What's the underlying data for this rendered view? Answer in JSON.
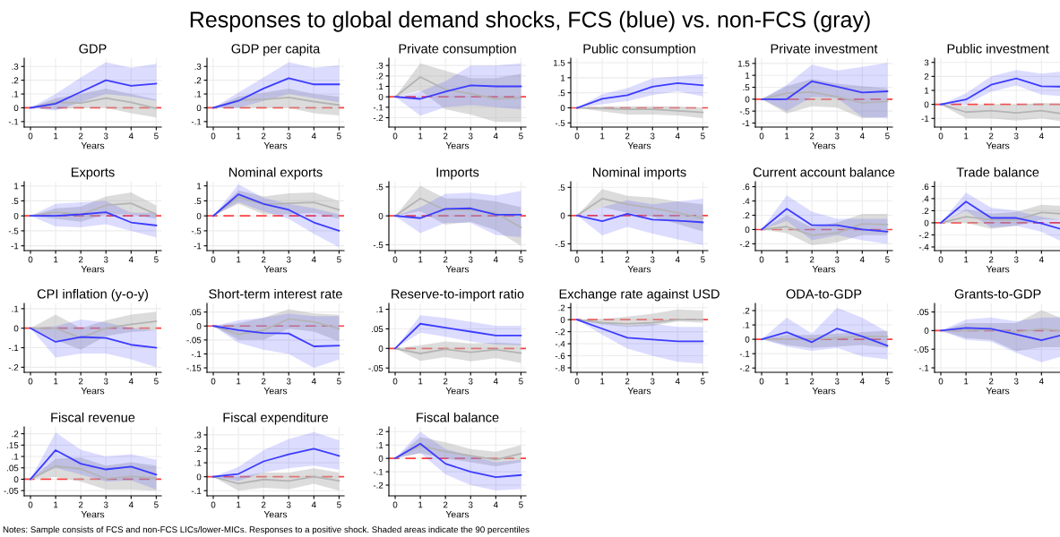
{
  "chart_data": [
    {
      "type": "other",
      "title": "Responses to global demand shocks, FCS (blue) vs. non-FCS (gray)",
      "annotations": [
        "Notes: Sample consists of FCS and non-FCS LICs/lower-MICs. Responses to a positive shock. Shaded areas indicate the 90 percentiles"
      ]
    },
    {
      "type": "line",
      "title": "GDP",
      "xlabel": "Years",
      "x": [
        0,
        1,
        2,
        3,
        4,
        5
      ],
      "xlim": [
        -0.25,
        5.2
      ],
      "xticks": [
        0,
        1,
        2,
        3,
        4,
        5
      ],
      "ylim": [
        -0.14,
        0.36
      ],
      "yticks": [
        {
          "value": -0.1,
          "label": "-.1"
        },
        0,
        {
          "value": 0.1,
          "label": ".1"
        },
        {
          "value": 0.2,
          "label": ".2"
        },
        {
          "value": 0.3,
          "label": ".3"
        }
      ],
      "grid": true,
      "ref_lines": [
        {
          "axis": "y",
          "value": 0,
          "color": "#ff4040",
          "line_style": "dashed"
        }
      ],
      "series": [
        {
          "color": "#b4b4b4",
          "values": [
            0,
            0.04,
            0.035,
            0.07,
            0.04,
            -0.005
          ],
          "lower": [
            0,
            -0.01,
            0,
            0,
            -0.04,
            -0.07
          ],
          "upper": [
            0,
            0.07,
            0.1,
            0.14,
            0.1,
            0.06
          ]
        },
        {
          "color": "#3c3cff",
          "values": [
            0,
            0.03,
            0.115,
            0.2,
            0.16,
            0.175
          ],
          "lower": [
            0,
            -0.02,
            0.04,
            0.1,
            0.08,
            0.05
          ],
          "upper": [
            0,
            0.1,
            0.22,
            0.33,
            0.29,
            0.32
          ]
        }
      ]
    },
    {
      "type": "line",
      "title": "GDP per capita",
      "xlabel": "Years",
      "x": [
        0,
        1,
        2,
        3,
        4,
        5
      ],
      "xlim": [
        -0.25,
        5.2
      ],
      "xticks": [
        0,
        1,
        2,
        3,
        4,
        5
      ],
      "ylim": [
        -0.14,
        0.36
      ],
      "yticks": [
        {
          "value": -0.1,
          "label": "-.1"
        },
        0,
        {
          "value": 0.1,
          "label": ".1"
        },
        {
          "value": 0.2,
          "label": ".2"
        },
        {
          "value": 0.3,
          "label": ".3"
        }
      ],
      "grid": true,
      "ref_lines": [
        {
          "axis": "y",
          "value": 0,
          "color": "#ff4040",
          "line_style": "dashed"
        }
      ],
      "series": [
        {
          "color": "#b4b4b4",
          "values": [
            0,
            0.055,
            0.06,
            0.075,
            0.045,
            0.02
          ],
          "lower": [
            0,
            0,
            0,
            0,
            -0.04,
            -0.055
          ],
          "upper": [
            0,
            0.08,
            0.11,
            0.14,
            0.1,
            0.08
          ]
        },
        {
          "color": "#3c3cff",
          "values": [
            0,
            0.05,
            0.14,
            0.215,
            0.17,
            0.17
          ],
          "lower": [
            0,
            0,
            0.05,
            0.1,
            0.07,
            0.04
          ],
          "upper": [
            0,
            0.11,
            0.22,
            0.33,
            0.29,
            0.31
          ]
        }
      ]
    },
    {
      "type": "line",
      "title": "Private consumption",
      "xlabel": "Years",
      "x": [
        0,
        1,
        2,
        3,
        4,
        5
      ],
      "xlim": [
        -0.25,
        5.2
      ],
      "xticks": [
        0,
        1,
        2,
        3,
        4,
        5
      ],
      "ylim": [
        -0.29,
        0.37
      ],
      "yticks": [
        {
          "value": -0.2,
          "label": "-.2"
        },
        {
          "value": -0.1,
          "label": "-.1"
        },
        0,
        {
          "value": 0.1,
          "label": ".1"
        },
        {
          "value": 0.2,
          "label": ".2"
        },
        {
          "value": 0.3,
          "label": ".3"
        }
      ],
      "grid": true,
      "ref_lines": [
        {
          "axis": "y",
          "value": 0,
          "color": "#ff4040",
          "line_style": "dashed"
        }
      ],
      "series": [
        {
          "color": "#b4b4b4",
          "values": [
            0,
            0.19,
            0.07,
            0.03,
            -0.02,
            -0.01
          ],
          "lower": [
            0,
            0.06,
            -0.12,
            -0.17,
            -0.24,
            -0.24
          ],
          "upper": [
            0,
            0.32,
            0.25,
            0.18,
            0.18,
            0.22
          ]
        },
        {
          "color": "#3c3cff",
          "values": [
            0,
            -0.02,
            0.05,
            0.11,
            0.1,
            0.1
          ],
          "lower": [
            0,
            -0.18,
            -0.1,
            -0.08,
            -0.1,
            -0.12
          ],
          "upper": [
            0,
            0.05,
            0.15,
            0.3,
            0.3,
            0.32
          ]
        }
      ]
    },
    {
      "type": "line",
      "title": "Public consumption",
      "xlabel": "Years",
      "x": [
        0,
        1,
        2,
        3,
        4,
        5
      ],
      "xlim": [
        -0.25,
        5.2
      ],
      "xticks": [
        0,
        1,
        2,
        3,
        4,
        5
      ],
      "ylim": [
        -0.64,
        1.65
      ],
      "yticks": [
        {
          "value": -0.5,
          "label": "-.5"
        },
        0,
        {
          "value": 0.5,
          "label": ".5"
        },
        1,
        1.5
      ],
      "grid": true,
      "ref_lines": [
        {
          "axis": "y",
          "value": 0,
          "color": "#ff4040",
          "line_style": "dashed"
        }
      ],
      "series": [
        {
          "color": "#b4b4b4",
          "values": [
            0,
            -0.02,
            -0.05,
            -0.05,
            -0.1,
            -0.15
          ],
          "lower": [
            0,
            -0.12,
            -0.22,
            -0.22,
            -0.25,
            -0.35
          ],
          "upper": [
            0,
            0.05,
            0.05,
            0.05,
            0.05,
            0
          ]
        },
        {
          "color": "#3c3cff",
          "values": [
            0,
            0.3,
            0.42,
            0.7,
            0.82,
            0.75
          ],
          "lower": [
            0,
            0.12,
            0.22,
            0.42,
            0.55,
            0.38
          ],
          "upper": [
            0,
            0.45,
            0.65,
            0.98,
            1.05,
            1.12
          ]
        }
      ]
    },
    {
      "type": "line",
      "title": "Private investment",
      "xlabel": "Years",
      "x": [
        0,
        1,
        2,
        3,
        4,
        5
      ],
      "xlim": [
        -0.25,
        5.2
      ],
      "xticks": [
        0,
        1,
        2,
        3,
        4,
        5
      ],
      "ylim": [
        -1.17,
        1.72
      ],
      "yticks": [
        -1,
        {
          "value": -0.5,
          "label": "-.5"
        },
        0,
        {
          "value": 0.5,
          "label": ".5"
        },
        1,
        1.5
      ],
      "grid": true,
      "ref_lines": [
        {
          "axis": "y",
          "value": 0,
          "color": "#ff4040",
          "line_style": "dashed"
        }
      ],
      "series": [
        {
          "color": "#b4b4b4",
          "values": [
            0,
            0.25,
            0.3,
            0.1,
            -0.15,
            -0.1
          ],
          "lower": [
            0,
            -0.6,
            -0.3,
            -0.35,
            -0.8,
            -0.75
          ],
          "upper": [
            0,
            0.55,
            0.85,
            0.65,
            0.55,
            0.45
          ]
        },
        {
          "color": "#3c3cff",
          "values": [
            0,
            0,
            0.75,
            0.52,
            0.28,
            0.33
          ],
          "lower": [
            0,
            -0.5,
            0.1,
            0.05,
            -0.75,
            -0.8
          ],
          "upper": [
            0,
            0.6,
            1.45,
            1.2,
            1.35,
            1.52
          ]
        }
      ]
    },
    {
      "type": "line",
      "title": "Public investment",
      "xlabel": "Years",
      "x": [
        0,
        1,
        2,
        3,
        4,
        4.75
      ],
      "xlim": [
        -0.25,
        4.78
      ],
      "xticks": [
        0,
        1,
        2,
        3,
        4
      ],
      "ylim": [
        -1.62,
        3.3
      ],
      "yticks": [
        -1,
        0,
        1,
        2,
        3
      ],
      "grid": true,
      "ref_lines": [
        {
          "axis": "y",
          "value": 0,
          "color": "#ff4040",
          "line_style": "dashed"
        }
      ],
      "series": [
        {
          "color": "#b4b4b4",
          "values": [
            0,
            -0.55,
            -0.45,
            -0.6,
            -0.45,
            -0.65
          ],
          "lower": [
            0,
            -1,
            -1,
            -1.15,
            -1,
            -1.2
          ],
          "upper": [
            0,
            -0.1,
            0,
            0,
            0.1,
            0.05
          ]
        },
        {
          "color": "#3c3cff",
          "values": [
            0,
            0.35,
            1.4,
            1.85,
            1.3,
            1.27
          ],
          "lower": [
            0,
            0,
            0.9,
            1.35,
            0.7,
            0.6
          ],
          "upper": [
            0,
            0.8,
            2,
            2.45,
            2.2,
            2.35
          ]
        }
      ]
    },
    {
      "type": "line",
      "title": "Exports",
      "xlabel": "Years",
      "x": [
        0,
        1,
        2,
        3,
        4,
        5
      ],
      "xlim": [
        -0.25,
        5.2
      ],
      "xticks": [
        0,
        1,
        2,
        3,
        4,
        5
      ],
      "ylim": [
        -1.16,
        1.14
      ],
      "yticks": [
        -1,
        {
          "value": -0.5,
          "label": "-.5"
        },
        0,
        {
          "value": 0.5,
          "label": ".5"
        },
        1
      ],
      "grid": true,
      "ref_lines": [
        {
          "axis": "y",
          "value": 0,
          "color": "#ff4040",
          "line_style": "dashed"
        }
      ],
      "series": [
        {
          "color": "#b4b4b4",
          "values": [
            0,
            0.12,
            0.05,
            0.35,
            0.42,
            0.05
          ],
          "lower": [
            0,
            -0.1,
            -0.2,
            0.05,
            0.05,
            -0.1
          ],
          "upper": [
            0,
            0.25,
            0.3,
            0.65,
            0.78,
            0.35
          ]
        },
        {
          "color": "#3c3cff",
          "values": [
            0,
            0,
            0.05,
            0.12,
            -0.22,
            -0.32
          ],
          "lower": [
            0,
            -0.35,
            -0.38,
            -0.28,
            -0.5,
            -0.72
          ],
          "upper": [
            0,
            0.4,
            0.45,
            0.5,
            0.1,
            0.1
          ]
        }
      ]
    },
    {
      "type": "line",
      "title": "Nominal exports",
      "xlabel": "Years",
      "x": [
        0,
        1,
        2,
        3,
        4,
        5
      ],
      "xlim": [
        -0.25,
        5.2
      ],
      "xticks": [
        0,
        1,
        2,
        3,
        4,
        5
      ],
      "ylim": [
        -1.16,
        1.14
      ],
      "yticks": [
        -1,
        {
          "value": -0.5,
          "label": "-.5"
        },
        0,
        {
          "value": 0.5,
          "label": ".5"
        },
        1
      ],
      "grid": true,
      "ref_lines": [
        {
          "axis": "y",
          "value": 0,
          "color": "#ff4040",
          "line_style": "dashed"
        }
      ],
      "series": [
        {
          "color": "#b4b4b4",
          "values": [
            0,
            0.62,
            0.38,
            0.42,
            0.45,
            0.2
          ],
          "lower": [
            0,
            0.4,
            0.05,
            0.05,
            0.1,
            -0.1
          ],
          "upper": [
            0,
            0.85,
            0.65,
            0.75,
            0.78,
            0.5
          ]
        },
        {
          "color": "#3c3cff",
          "values": [
            0,
            0.72,
            0.4,
            0.2,
            -0.22,
            -0.5
          ],
          "lower": [
            0,
            0.45,
            0.15,
            -0.1,
            -0.6,
            -1.05
          ],
          "upper": [
            0,
            1.05,
            0.6,
            0.4,
            0.25,
            0.05
          ]
        }
      ]
    },
    {
      "type": "line",
      "title": "Imports",
      "xlabel": "Years",
      "x": [
        0,
        1,
        2,
        3,
        4,
        5
      ],
      "xlim": [
        -0.25,
        5.2
      ],
      "xticks": [
        0,
        1,
        2,
        3,
        4,
        5
      ],
      "ylim": [
        -0.6,
        0.59
      ],
      "yticks": [
        {
          "value": -0.5,
          "label": "-.5"
        },
        0,
        {
          "value": 0.5,
          "label": ".5"
        }
      ],
      "grid": true,
      "ref_lines": [
        {
          "axis": "y",
          "value": 0,
          "color": "#ff4040",
          "line_style": "dashed"
        }
      ],
      "series": [
        {
          "color": "#b4b4b4",
          "values": [
            0,
            0.3,
            0.1,
            0.1,
            0.05,
            -0.2
          ],
          "lower": [
            0,
            0.08,
            -0.15,
            -0.1,
            -0.25,
            -0.52
          ],
          "upper": [
            0,
            0.52,
            0.3,
            0.3,
            0.25,
            0.15
          ]
        },
        {
          "color": "#3c3cff",
          "values": [
            0,
            -0.04,
            0.12,
            0.13,
            0.02,
            0.02
          ],
          "lower": [
            0,
            -0.3,
            -0.12,
            -0.12,
            -0.33,
            -0.37
          ],
          "upper": [
            0,
            0.15,
            0.38,
            0.4,
            0.35,
            0.43
          ]
        }
      ]
    },
    {
      "type": "line",
      "title": "Nominal imports",
      "xlabel": "Years",
      "x": [
        0,
        1,
        2,
        3,
        4,
        5
      ],
      "xlim": [
        -0.25,
        5.2
      ],
      "xticks": [
        0,
        1,
        2,
        3,
        4,
        5
      ],
      "ylim": [
        -0.62,
        0.6
      ],
      "yticks": [
        {
          "value": -0.5,
          "label": "-.5"
        },
        0,
        {
          "value": 0.5,
          "label": ".5"
        }
      ],
      "grid": true,
      "ref_lines": [
        {
          "axis": "y",
          "value": 0,
          "color": "#ff4040",
          "line_style": "dashed"
        }
      ],
      "series": [
        {
          "color": "#b4b4b4",
          "values": [
            0,
            0.3,
            0.2,
            0.13,
            0.05,
            -0.05
          ],
          "lower": [
            0,
            0.15,
            0.05,
            -0.02,
            -0.15,
            -0.28
          ],
          "upper": [
            0,
            0.47,
            0.35,
            0.32,
            0.25,
            0.2
          ]
        },
        {
          "color": "#3c3cff",
          "values": [
            0,
            -0.1,
            0.03,
            -0.07,
            -0.09,
            -0.12
          ],
          "lower": [
            0,
            -0.35,
            -0.2,
            -0.32,
            -0.42,
            -0.52
          ],
          "upper": [
            0,
            0.15,
            0.27,
            0.2,
            0.25,
            0.3
          ]
        }
      ]
    },
    {
      "type": "line",
      "title": "Current account balance",
      "xlabel": "Years",
      "x": [
        0,
        1,
        2,
        3,
        4,
        5
      ],
      "xlim": [
        -0.25,
        5.2
      ],
      "xticks": [
        0,
        1,
        2,
        3,
        4,
        5
      ],
      "ylim": [
        -0.295,
        0.67
      ],
      "yticks": [
        {
          "value": -0.2,
          "label": "-.2"
        },
        0,
        {
          "value": 0.2,
          "label": ".2"
        },
        {
          "value": 0.4,
          "label": ".4"
        },
        {
          "value": 0.6,
          "label": ".6"
        }
      ],
      "grid": true,
      "ref_lines": [
        {
          "axis": "y",
          "value": 0,
          "color": "#ff4040",
          "line_style": "dashed"
        }
      ],
      "series": [
        {
          "color": "#b4b4b4",
          "values": [
            0,
            0.04,
            -0.08,
            -0.05,
            0.08,
            0.07
          ],
          "lower": [
            0,
            -0.05,
            -0.22,
            -0.18,
            -0.08,
            -0.08
          ],
          "upper": [
            0,
            0.2,
            0.03,
            0.1,
            0.22,
            0.22
          ]
        },
        {
          "color": "#3c3cff",
          "values": [
            0,
            0.29,
            0.06,
            0.06,
            0,
            -0.03
          ],
          "lower": [
            0,
            0.12,
            -0.15,
            -0.08,
            -0.15,
            -0.2
          ],
          "upper": [
            0,
            0.48,
            0.25,
            0.15,
            0.15,
            0.15
          ]
        }
      ]
    },
    {
      "type": "line",
      "title": "Trade balance",
      "xlabel": "Years",
      "x": [
        0,
        1,
        2,
        3,
        4,
        4.75
      ],
      "xlim": [
        -0.25,
        4.78
      ],
      "xticks": [
        0,
        1,
        2,
        3,
        4
      ],
      "ylim": [
        -0.46,
        0.68
      ],
      "yticks": [
        {
          "value": -0.4,
          "label": "-.4"
        },
        {
          "value": -0.2,
          "label": "-.2"
        },
        0,
        {
          "value": 0.2,
          "label": ".2"
        },
        {
          "value": 0.4,
          "label": ".4"
        },
        {
          "value": 0.6,
          "label": ".6"
        }
      ],
      "grid": true,
      "ref_lines": [
        {
          "axis": "y",
          "value": 0,
          "color": "#ff4040",
          "line_style": "dashed"
        }
      ],
      "series": [
        {
          "color": "#b4b4b4",
          "values": [
            0,
            0.1,
            0.05,
            0.05,
            0.17,
            0.15
          ],
          "lower": [
            0,
            0,
            -0.1,
            -0.05,
            0.05,
            0.05
          ],
          "upper": [
            0,
            0.22,
            0.15,
            0.18,
            0.3,
            0.28
          ]
        },
        {
          "color": "#3c3cff",
          "values": [
            0,
            0.35,
            0.08,
            0.08,
            -0.01,
            -0.1
          ],
          "lower": [
            0,
            0.2,
            -0.08,
            -0.05,
            -0.15,
            -0.3
          ],
          "upper": [
            0,
            0.5,
            0.25,
            0.2,
            0.1,
            0.05
          ]
        }
      ]
    },
    {
      "type": "line",
      "title": "CPI inflation (y-o-y)",
      "xlabel": "Years",
      "x": [
        0,
        1,
        2,
        3,
        4,
        5
      ],
      "xlim": [
        -0.25,
        5.2
      ],
      "xticks": [
        0,
        1,
        2,
        3,
        4,
        5
      ],
      "ylim": [
        -0.226,
        0.127
      ],
      "yticks": [
        {
          "value": -0.2,
          "label": "-.2"
        },
        {
          "value": -0.1,
          "label": "-.1"
        },
        0,
        {
          "value": 0.1,
          "label": ".1"
        }
      ],
      "grid": true,
      "ref_lines": [
        {
          "axis": "y",
          "value": 0,
          "color": "#ff4040",
          "line_style": "dashed"
        }
      ],
      "series": [
        {
          "color": "#b4b4b4",
          "values": [
            0,
            0,
            -0.05,
            0,
            0.02,
            0.035
          ],
          "lower": [
            0,
            -0.06,
            -0.11,
            -0.04,
            -0.02,
            -0.01
          ],
          "upper": [
            0,
            0.07,
            0,
            0.04,
            0.07,
            0.085
          ]
        },
        {
          "color": "#3c3cff",
          "values": [
            0,
            -0.07,
            -0.045,
            -0.05,
            -0.085,
            -0.1
          ],
          "lower": [
            0,
            -0.15,
            -0.13,
            -0.13,
            -0.16,
            -0.2
          ],
          "upper": [
            0,
            0.01,
            0.045,
            0.03,
            0,
            -0.01
          ]
        }
      ]
    },
    {
      "type": "line",
      "title": "Short-term interest rate",
      "xlabel": "Years",
      "x": [
        0,
        1,
        2,
        3,
        4,
        5
      ],
      "xlim": [
        -0.25,
        5.2
      ],
      "xticks": [
        0,
        1,
        2,
        3,
        4,
        5
      ],
      "ylim": [
        -0.166,
        0.081
      ],
      "yticks": [
        {
          "value": -0.15,
          "label": "-.15"
        },
        {
          "value": -0.1,
          "label": "-.1"
        },
        {
          "value": -0.05,
          "label": "-.05"
        },
        0,
        {
          "value": 0.05,
          "label": ".05"
        }
      ],
      "grid": true,
      "ref_lines": [
        {
          "axis": "y",
          "value": 0,
          "color": "#ff4040",
          "line_style": "dashed"
        }
      ],
      "series": [
        {
          "color": "#b4b4b4",
          "values": [
            0,
            -0.03,
            -0.015,
            0.025,
            0.015,
            -0.01
          ],
          "lower": [
            0,
            -0.05,
            -0.05,
            -0.01,
            -0.02,
            -0.055
          ],
          "upper": [
            0,
            0.01,
            0.03,
            0.06,
            0.045,
            0.04
          ]
        },
        {
          "color": "#3c3cff",
          "values": [
            0,
            -0.015,
            -0.025,
            -0.027,
            -0.073,
            -0.07
          ],
          "lower": [
            0,
            -0.06,
            -0.085,
            -0.1,
            -0.15,
            -0.12
          ],
          "upper": [
            0,
            0.02,
            0.03,
            0.045,
            0.035,
            0.035
          ]
        }
      ]
    },
    {
      "type": "line",
      "title": "Reserve-to-import ratio",
      "xlabel": "Years",
      "x": [
        0,
        1,
        2,
        3,
        4,
        5
      ],
      "xlim": [
        -0.25,
        5.2
      ],
      "xticks": [
        0,
        1,
        2,
        3,
        4,
        5
      ],
      "ylim": [
        -0.061,
        0.115
      ],
      "yticks": [
        {
          "value": -0.05,
          "label": "-.05"
        },
        0,
        {
          "value": 0.05,
          "label": ".05"
        },
        {
          "value": 0.1,
          "label": ".1"
        }
      ],
      "grid": true,
      "ref_lines": [
        {
          "axis": "y",
          "value": 0,
          "color": "#ff4040",
          "line_style": "dashed"
        }
      ],
      "series": [
        {
          "color": "#b4b4b4",
          "values": [
            0,
            -0.013,
            -0.002,
            -0.01,
            -0.003,
            -0.012
          ],
          "lower": [
            0,
            -0.032,
            -0.022,
            -0.033,
            -0.025,
            -0.037
          ],
          "upper": [
            0,
            0.008,
            0.018,
            0.013,
            0.015,
            0.012
          ]
        },
        {
          "color": "#3c3cff",
          "values": [
            0,
            0.063,
            0.053,
            0.043,
            0.033,
            0.033
          ],
          "lower": [
            0,
            0.04,
            0.03,
            0.018,
            0.01,
            0.008
          ],
          "upper": [
            0,
            0.085,
            0.078,
            0.068,
            0.058,
            0.058
          ]
        }
      ]
    },
    {
      "type": "line",
      "title": "Exchange rate against USD",
      "xlabel": "Years",
      "x": [
        0,
        1,
        2,
        3,
        4,
        5
      ],
      "xlim": [
        -0.25,
        5.2
      ],
      "xticks": [
        0,
        1,
        2,
        3,
        4,
        5
      ],
      "ylim": [
        -0.875,
        0.27
      ],
      "yticks": [
        {
          "value": -0.8,
          "label": "-.8"
        },
        {
          "value": -0.6,
          "label": "-.6"
        },
        {
          "value": -0.4,
          "label": "-.4"
        },
        {
          "value": -0.2,
          "label": "-.2"
        },
        0,
        {
          "value": 0.2,
          "label": ".2"
        }
      ],
      "grid": true,
      "ref_lines": [
        {
          "axis": "y",
          "value": 0,
          "color": "#ff4040",
          "line_style": "dashed"
        }
      ],
      "series": [
        {
          "color": "#b4b4b4",
          "values": [
            0,
            -0.05,
            -0.07,
            -0.05,
            0,
            0
          ],
          "lower": [
            0,
            -0.08,
            -0.12,
            -0.1,
            -0.03,
            -0.05
          ],
          "upper": [
            0,
            0.01,
            0.05,
            0.1,
            0.17,
            0.15
          ]
        },
        {
          "color": "#3c3cff",
          "values": [
            0,
            -0.15,
            -0.3,
            -0.33,
            -0.36,
            -0.36
          ],
          "lower": [
            0,
            -0.25,
            -0.48,
            -0.6,
            -0.7,
            -0.73
          ],
          "upper": [
            0,
            -0.05,
            -0.1,
            -0.07,
            -0.12,
            -0.12
          ]
        }
      ]
    },
    {
      "type": "line",
      "title": "ODA-to-GDP",
      "xlabel": "Years",
      "x": [
        0,
        1,
        2,
        3,
        4,
        5
      ],
      "xlim": [
        -0.25,
        5.2
      ],
      "xticks": [
        0,
        1,
        2,
        3,
        4,
        5
      ],
      "ylim": [
        -0.23,
        0.25
      ],
      "yticks": [
        {
          "value": -0.2,
          "label": "-.2"
        },
        {
          "value": -0.1,
          "label": "-.1"
        },
        0,
        {
          "value": 0.1,
          "label": ".1"
        },
        {
          "value": 0.2,
          "label": ".2"
        }
      ],
      "grid": true,
      "ref_lines": [
        {
          "axis": "y",
          "value": 0,
          "color": "#ff4040",
          "line_style": "dashed"
        }
      ],
      "series": [
        {
          "color": "#b4b4b4",
          "values": [
            0,
            0,
            0,
            0.01,
            0.02,
            0.02
          ],
          "lower": [
            0,
            -0.04,
            -0.06,
            -0.05,
            -0.04,
            -0.06
          ],
          "upper": [
            0,
            0.03,
            0.03,
            0.04,
            0.05,
            0.06
          ]
        },
        {
          "color": "#3c3cff",
          "values": [
            0,
            0.05,
            -0.02,
            0.075,
            0.02,
            -0.045
          ],
          "lower": [
            0,
            -0.05,
            -0.08,
            -0.06,
            -0.12,
            -0.14
          ],
          "upper": [
            0,
            0.15,
            0.04,
            0.22,
            0.15,
            0.05
          ]
        }
      ]
    },
    {
      "type": "line",
      "title": "Grants-to-GDP",
      "xlabel": "Years",
      "x": [
        0,
        1,
        2,
        3,
        4,
        4.75
      ],
      "xlim": [
        -0.25,
        4.78
      ],
      "xticks": [
        0,
        1,
        2,
        3,
        4
      ],
      "ylim": [
        -0.112,
        0.073
      ],
      "yticks": [
        {
          "value": -0.1,
          "label": "-.1"
        },
        {
          "value": -0.05,
          "label": "-.05"
        },
        0,
        {
          "value": 0.05,
          "label": ".05"
        }
      ],
      "grid": true,
      "ref_lines": [
        {
          "axis": "y",
          "value": 0,
          "color": "#ff4040",
          "line_style": "dashed"
        }
      ],
      "series": [
        {
          "color": "#b4b4b4",
          "values": [
            0,
            0,
            0.003,
            -0.005,
            0.005,
            0
          ],
          "lower": [
            0,
            -0.02,
            -0.025,
            -0.055,
            -0.045,
            -0.045
          ],
          "upper": [
            0,
            0.02,
            0.02,
            0.02,
            0.055,
            0.035
          ]
        },
        {
          "color": "#3c3cff",
          "values": [
            0,
            0.007,
            0.005,
            -0.01,
            -0.026,
            -0.013
          ],
          "lower": [
            0,
            -0.025,
            -0.03,
            -0.06,
            -0.085,
            -0.07
          ],
          "upper": [
            0,
            0.03,
            0.035,
            0.025,
            0.035,
            0.035
          ]
        }
      ]
    },
    {
      "type": "line",
      "title": "Fiscal revenue",
      "xlabel": "Years",
      "x": [
        0,
        1,
        2,
        3,
        4,
        5
      ],
      "xlim": [
        -0.25,
        5.2
      ],
      "xticks": [
        0,
        1,
        2,
        3,
        4,
        5
      ],
      "ylim": [
        -0.073,
        0.23
      ],
      "yticks": [
        {
          "value": -0.05,
          "label": "-.05"
        },
        0,
        {
          "value": 0.05,
          "label": ".05"
        },
        {
          "value": 0.1,
          "label": ".1"
        },
        {
          "value": 0.15,
          "label": ".15"
        },
        {
          "value": 0.2,
          "label": ".2"
        }
      ],
      "grid": true,
      "ref_lines": [
        {
          "axis": "y",
          "value": 0,
          "color": "#ff4040",
          "line_style": "dashed"
        }
      ],
      "series": [
        {
          "color": "#b4b4b4",
          "values": [
            0,
            0.058,
            0.045,
            0.002,
            0.012,
            0.005
          ],
          "lower": [
            0,
            0.01,
            -0.01,
            -0.045,
            -0.045,
            -0.05
          ],
          "upper": [
            0,
            0.09,
            0.095,
            0.06,
            0.075,
            0.06
          ]
        },
        {
          "color": "#3c3cff",
          "values": [
            0,
            0.128,
            0.068,
            0.043,
            0.055,
            0.02
          ],
          "lower": [
            0,
            0.05,
            0.02,
            -0.01,
            -0.005,
            -0.045
          ],
          "upper": [
            0,
            0.205,
            0.13,
            0.1,
            0.11,
            0.085
          ]
        }
      ]
    },
    {
      "type": "line",
      "title": "Fiscal expenditure",
      "xlabel": "Years",
      "x": [
        0,
        1,
        2,
        3,
        4,
        5
      ],
      "xlim": [
        -0.25,
        5.2
      ],
      "xticks": [
        0,
        1,
        2,
        3,
        4,
        5
      ],
      "ylim": [
        -0.137,
        0.357
      ],
      "yticks": [
        {
          "value": -0.1,
          "label": "-.1"
        },
        0,
        {
          "value": 0.1,
          "label": ".1"
        },
        {
          "value": 0.2,
          "label": ".2"
        },
        {
          "value": 0.3,
          "label": ".3"
        }
      ],
      "grid": true,
      "ref_lines": [
        {
          "axis": "y",
          "value": 0,
          "color": "#ff4040",
          "line_style": "dashed"
        }
      ],
      "series": [
        {
          "color": "#b4b4b4",
          "values": [
            0,
            -0.05,
            -0.02,
            -0.03,
            0,
            -0.03
          ],
          "lower": [
            0,
            -0.1,
            -0.08,
            -0.09,
            -0.05,
            -0.1
          ],
          "upper": [
            0,
            0,
            0.03,
            0.03,
            0.06,
            0.03
          ]
        },
        {
          "color": "#3c3cff",
          "values": [
            0,
            0.02,
            0.11,
            0.16,
            0.2,
            0.15
          ],
          "lower": [
            0,
            -0.03,
            0.03,
            0.06,
            0.08,
            0.05
          ],
          "upper": [
            0,
            0.07,
            0.19,
            0.27,
            0.32,
            0.26
          ]
        }
      ]
    },
    {
      "type": "line",
      "title": "Fiscal balance",
      "xlabel": "Years",
      "x": [
        0,
        1,
        2,
        3,
        4,
        5
      ],
      "xlim": [
        -0.25,
        5.2
      ],
      "xticks": [
        0,
        1,
        2,
        3,
        4,
        5
      ],
      "ylim": [
        -0.28,
        0.235
      ],
      "yticks": [
        {
          "value": -0.2,
          "label": "-.2"
        },
        {
          "value": -0.1,
          "label": "-.1"
        },
        0,
        {
          "value": 0.1,
          "label": ".1"
        },
        {
          "value": 0.2,
          "label": ".2"
        }
      ],
      "grid": true,
      "ref_lines": [
        {
          "axis": "y",
          "value": 0,
          "color": "#ff4040",
          "line_style": "dashed"
        }
      ],
      "series": [
        {
          "color": "#b4b4b4",
          "values": [
            0,
            0.095,
            0.05,
            0.02,
            -0.01,
            0.035
          ],
          "lower": [
            0,
            0.04,
            0,
            -0.03,
            -0.06,
            -0.03
          ],
          "upper": [
            0,
            0.16,
            0.12,
            0.07,
            0.05,
            0.1
          ]
        },
        {
          "color": "#3c3cff",
          "values": [
            0,
            0.11,
            -0.04,
            -0.1,
            -0.14,
            -0.125
          ],
          "lower": [
            0,
            0.04,
            -0.12,
            -0.2,
            -0.24,
            -0.23
          ],
          "upper": [
            0,
            0.2,
            0.07,
            0.02,
            -0.03,
            -0.01
          ]
        }
      ]
    }
  ]
}
